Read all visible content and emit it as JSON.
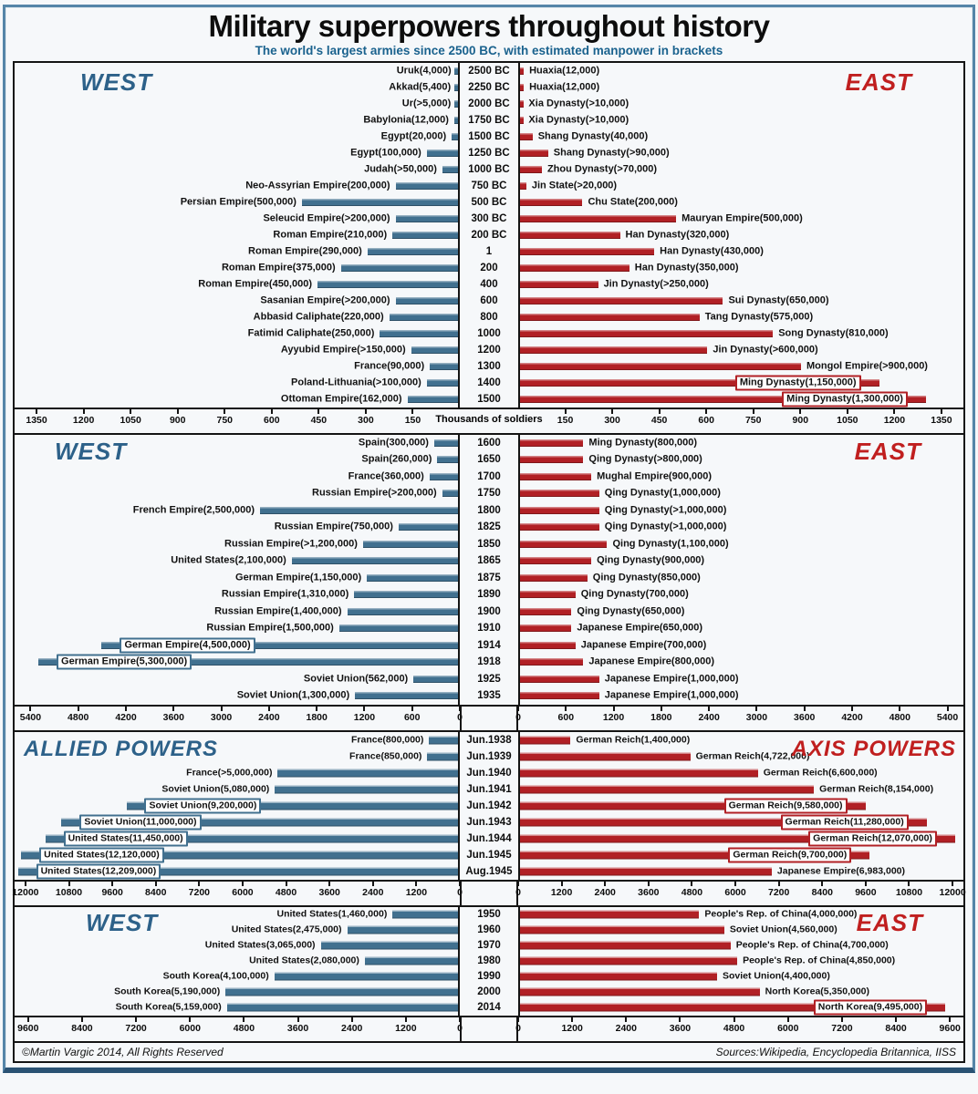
{
  "title": "Military superpowers throughout history",
  "subtitle": "The world's largest armies since 2500 BC, with estimated manpower in brackets",
  "footer": {
    "left": "©Martin Vargic 2014, All Rights Reserved",
    "right": "Sources:Wikipedia, Encyclopedia Britannica, IISS"
  },
  "colors": {
    "west_bar": "#41708f",
    "east_bar": "#b12025",
    "west_text": "#2d6189",
    "east_text": "#c01f1f",
    "subtitle": "#1a628e",
    "connector_line": "#c9c9c9"
  },
  "chart_data": [
    {
      "type": "bar",
      "orientation": "diverging-horizontal",
      "unit": "thousands of soldiers",
      "west_header": "WEST",
      "east_header": "EAST",
      "axis": {
        "ticks": [
          150,
          300,
          450,
          600,
          750,
          900,
          1050,
          1200,
          1350
        ],
        "tick_interval": 150,
        "scale_max": 1420,
        "show_zero": false,
        "center_caption": "Thousands of soldiers"
      },
      "rows": [
        {
          "period": "2500 BC",
          "west": {
            "label": "Uruk(4,000)",
            "value": 4
          },
          "east": {
            "label": "Huaxia(12,000)",
            "value": 12
          }
        },
        {
          "period": "2250 BC",
          "west": {
            "label": "Akkad(5,400)",
            "value": 5.4
          },
          "east": {
            "label": "Huaxia(12,000)",
            "value": 12
          }
        },
        {
          "period": "2000 BC",
          "west": {
            "label": "Ur(>5,000)",
            "value": 5
          },
          "east": {
            "label": "Xia Dynasty(>10,000)",
            "value": 10
          }
        },
        {
          "period": "1750 BC",
          "west": {
            "label": "Babylonia(12,000)",
            "value": 12
          },
          "east": {
            "label": "Xia Dynasty(>10,000)",
            "value": 10
          }
        },
        {
          "period": "1500 BC",
          "west": {
            "label": "Egypt(20,000)",
            "value": 20
          },
          "east": {
            "label": "Shang Dynasty(40,000)",
            "value": 40
          }
        },
        {
          "period": "1250 BC",
          "west": {
            "label": "Egypt(100,000)",
            "value": 100
          },
          "east": {
            "label": "Shang Dynasty(>90,000)",
            "value": 90
          }
        },
        {
          "period": "1000 BC",
          "west": {
            "label": "Judah(>50,000)",
            "value": 50
          },
          "east": {
            "label": "Zhou Dynasty(>70,000)",
            "value": 70
          }
        },
        {
          "period": "750 BC",
          "west": {
            "label": "Neo-Assyrian Empire(200,000)",
            "value": 200
          },
          "east": {
            "label": "Jin State(>20,000)",
            "value": 20
          }
        },
        {
          "period": "500 BC",
          "west": {
            "label": "Persian Empire(500,000)",
            "value": 500
          },
          "east": {
            "label": "Chu State(200,000)",
            "value": 200
          }
        },
        {
          "period": "300 BC",
          "west": {
            "label": "Seleucid Empire(>200,000)",
            "value": 200
          },
          "east": {
            "label": "Mauryan Empire(500,000)",
            "value": 500
          }
        },
        {
          "period": "200 BC",
          "west": {
            "label": "Roman Empire(210,000)",
            "value": 210
          },
          "east": {
            "label": "Han Dynasty(320,000)",
            "value": 320
          }
        },
        {
          "period": "1",
          "west": {
            "label": "Roman Empire(290,000)",
            "value": 290
          },
          "east": {
            "label": "Han Dynasty(430,000)",
            "value": 430
          }
        },
        {
          "period": "200",
          "west": {
            "label": "Roman Empire(375,000)",
            "value": 375
          },
          "east": {
            "label": "Han Dynasty(350,000)",
            "value": 350
          }
        },
        {
          "period": "400",
          "west": {
            "label": "Roman Empire(450,000)",
            "value": 450
          },
          "east": {
            "label": "Jin Dynasty(>250,000)",
            "value": 250
          }
        },
        {
          "period": "600",
          "west": {
            "label": "Sasanian Empire(>200,000)",
            "value": 200
          },
          "east": {
            "label": "Sui Dynasty(650,000)",
            "value": 650
          }
        },
        {
          "period": "800",
          "west": {
            "label": "Abbasid Caliphate(220,000)",
            "value": 220
          },
          "east": {
            "label": "Tang Dynasty(575,000)",
            "value": 575
          }
        },
        {
          "period": "1000",
          "west": {
            "label": "Fatimid Caliphate(250,000)",
            "value": 250
          },
          "east": {
            "label": "Song Dynasty(810,000)",
            "value": 810
          }
        },
        {
          "period": "1200",
          "west": {
            "label": "Ayyubid Empire(>150,000)",
            "value": 150
          },
          "east": {
            "label": "Jin Dynasty(>600,000)",
            "value": 600
          }
        },
        {
          "period": "1300",
          "west": {
            "label": "France(90,000)",
            "value": 90
          },
          "east": {
            "label": "Mongol Empire(>900,000)",
            "value": 900
          }
        },
        {
          "period": "1400",
          "west": {
            "label": "Poland-Lithuania(>100,000)",
            "value": 100
          },
          "east": {
            "label": "Ming Dynasty(1,150,000)",
            "value": 1150,
            "boxed": true
          }
        },
        {
          "period": "1500",
          "west": {
            "label": "Ottoman Empire(162,000)",
            "value": 162
          },
          "east": {
            "label": "Ming Dynasty(1,300,000)",
            "value": 1300,
            "boxed": true
          }
        }
      ]
    },
    {
      "type": "bar",
      "orientation": "diverging-horizontal",
      "unit": "thousands of soldiers",
      "west_header": "WEST",
      "east_header": "EAST",
      "axis": {
        "ticks": [
          600,
          1200,
          1800,
          2400,
          3000,
          3600,
          4200,
          4800,
          5400
        ],
        "tick_interval": 600,
        "scale_max": 5600,
        "show_zero": true,
        "center_caption": ""
      },
      "rows": [
        {
          "period": "1600",
          "west": {
            "label": "Spain(300,000)",
            "value": 300
          },
          "east": {
            "label": "Ming Dynasty(800,000)",
            "value": 800
          }
        },
        {
          "period": "1650",
          "west": {
            "label": "Spain(260,000)",
            "value": 260
          },
          "east": {
            "label": "Qing Dynasty(>800,000)",
            "value": 800
          }
        },
        {
          "period": "1700",
          "west": {
            "label": "France(360,000)",
            "value": 360
          },
          "east": {
            "label": "Mughal Empire(900,000)",
            "value": 900
          }
        },
        {
          "period": "1750",
          "west": {
            "label": "Russian Empire(>200,000)",
            "value": 200
          },
          "east": {
            "label": "Qing Dynasty(1,000,000)",
            "value": 1000
          }
        },
        {
          "period": "1800",
          "west": {
            "label": "French Empire(2,500,000)",
            "value": 2500
          },
          "east": {
            "label": "Qing Dynasty(>1,000,000)",
            "value": 1000
          }
        },
        {
          "period": "1825",
          "west": {
            "label": "Russian Empire(750,000)",
            "value": 750
          },
          "east": {
            "label": "Qing Dynasty(>1,000,000)",
            "value": 1000
          }
        },
        {
          "period": "1850",
          "west": {
            "label": "Russian Empire(>1,200,000)",
            "value": 1200
          },
          "east": {
            "label": "Qing Dynasty(1,100,000)",
            "value": 1100
          }
        },
        {
          "period": "1865",
          "west": {
            "label": "United States(2,100,000)",
            "value": 2100
          },
          "east": {
            "label": "Qing Dynasty(900,000)",
            "value": 900
          }
        },
        {
          "period": "1875",
          "west": {
            "label": "German Empire(1,150,000)",
            "value": 1150
          },
          "east": {
            "label": "Qing Dynasty(850,000)",
            "value": 850
          }
        },
        {
          "period": "1890",
          "west": {
            "label": "Russian Empire(1,310,000)",
            "value": 1310
          },
          "east": {
            "label": "Qing Dynasty(700,000)",
            "value": 700
          }
        },
        {
          "period": "1900",
          "west": {
            "label": "Russian Empire(1,400,000)",
            "value": 1400
          },
          "east": {
            "label": "Qing Dynasty(650,000)",
            "value": 650
          }
        },
        {
          "period": "1910",
          "west": {
            "label": "Russian Empire(1,500,000)",
            "value": 1500
          },
          "east": {
            "label": "Japanese Empire(650,000)",
            "value": 650
          }
        },
        {
          "period": "1914",
          "west": {
            "label": "German Empire(4,500,000)",
            "value": 4500,
            "boxed": true
          },
          "east": {
            "label": "Japanese Empire(700,000)",
            "value": 700
          }
        },
        {
          "period": "1918",
          "west": {
            "label": "German Empire(5,300,000)",
            "value": 5300,
            "boxed": true
          },
          "east": {
            "label": "Japanese Empire(800,000)",
            "value": 800
          }
        },
        {
          "period": "1925",
          "west": {
            "label": "Soviet Union(562,000)",
            "value": 562
          },
          "east": {
            "label": "Japanese Empire(1,000,000)",
            "value": 1000
          }
        },
        {
          "period": "1935",
          "west": {
            "label": "Soviet Union(1,300,000)",
            "value": 1300
          },
          "east": {
            "label": "Japanese Empire(1,000,000)",
            "value": 1000
          }
        }
      ]
    },
    {
      "type": "bar",
      "orientation": "diverging-horizontal",
      "unit": "thousands of soldiers",
      "west_header": "ALLIED POWERS",
      "east_header": "AXIS POWERS",
      "axis": {
        "ticks": [
          1200,
          2400,
          3600,
          4800,
          6000,
          7200,
          8400,
          9600,
          10800,
          12000
        ],
        "tick_interval": 1200,
        "scale_max": 12300,
        "show_zero": true,
        "center_caption": ""
      },
      "rows": [
        {
          "period": "Jun.1938",
          "west": {
            "label": "France(800,000)",
            "value": 800
          },
          "east": {
            "label": "German Reich(1,400,000)",
            "value": 1400
          }
        },
        {
          "period": "Jun.1939",
          "west": {
            "label": "France(850,000)",
            "value": 850
          },
          "east": {
            "label": "German Reich(4,722,000)",
            "value": 4722
          }
        },
        {
          "period": "Jun.1940",
          "west": {
            "label": "France(>5,000,000)",
            "value": 5000
          },
          "east": {
            "label": "German Reich(6,600,000)",
            "value": 6600
          }
        },
        {
          "period": "Jun.1941",
          "west": {
            "label": "Soviet Union(5,080,000)",
            "value": 5080
          },
          "east": {
            "label": "German Reich(8,154,000)",
            "value": 8154
          }
        },
        {
          "period": "Jun.1942",
          "west": {
            "label": "Soviet Union(9,200,000)",
            "value": 9200,
            "boxed": true
          },
          "east": {
            "label": "German Reich(9,580,000)",
            "value": 9580,
            "boxed": true
          }
        },
        {
          "period": "Jun.1943",
          "west": {
            "label": "Soviet Union(11,000,000)",
            "value": 11000,
            "boxed": true
          },
          "east": {
            "label": "German Reich(11,280,000)",
            "value": 11280,
            "boxed": true
          }
        },
        {
          "period": "Jun.1944",
          "west": {
            "label": "United States(11,450,000)",
            "value": 11450,
            "boxed": true
          },
          "east": {
            "label": "German Reich(12,070,000)",
            "value": 12070,
            "boxed": true
          }
        },
        {
          "period": "Jun.1945",
          "west": {
            "label": "United States(12,120,000)",
            "value": 12120,
            "boxed": true
          },
          "east": {
            "label": "German Reich(9,700,000)",
            "value": 9700,
            "boxed": true
          }
        },
        {
          "period": "Aug.1945",
          "west": {
            "label": "United States(12,209,000)",
            "value": 12209,
            "boxed": true
          },
          "east": {
            "label": "Japanese Empire(6,983,000)",
            "value": 6983
          }
        }
      ]
    },
    {
      "type": "bar",
      "orientation": "diverging-horizontal",
      "unit": "thousands of soldiers",
      "west_header": "WEST",
      "east_header": "EAST",
      "axis": {
        "ticks": [
          1200,
          2400,
          3600,
          4800,
          6000,
          7200,
          8400,
          9600
        ],
        "tick_interval": 1200,
        "scale_max": 9900,
        "show_zero": true,
        "center_caption": ""
      },
      "rows": [
        {
          "period": "1950",
          "west": {
            "label": "United States(1,460,000)",
            "value": 1460
          },
          "east": {
            "label": "People's Rep. of China(4,000,000)",
            "value": 4000
          }
        },
        {
          "period": "1960",
          "west": {
            "label": "United States(2,475,000)",
            "value": 2475
          },
          "east": {
            "label": "Soviet Union(4,560,000)",
            "value": 4560
          }
        },
        {
          "period": "1970",
          "west": {
            "label": "United States(3,065,000)",
            "value": 3065
          },
          "east": {
            "label": "People's Rep. of China(4,700,000)",
            "value": 4700
          }
        },
        {
          "period": "1980",
          "west": {
            "label": "United States(2,080,000)",
            "value": 2080
          },
          "east": {
            "label": "People's Rep. of China(4,850,000)",
            "value": 4850
          }
        },
        {
          "period": "1990",
          "west": {
            "label": "South Korea(4,100,000)",
            "value": 4100
          },
          "east": {
            "label": "Soviet Union(4,400,000)",
            "value": 4400
          }
        },
        {
          "period": "2000",
          "west": {
            "label": "South Korea(5,190,000)",
            "value": 5190
          },
          "east": {
            "label": "North Korea(5,350,000)",
            "value": 5350
          }
        },
        {
          "period": "2014",
          "west": {
            "label": "South Korea(5,159,000)",
            "value": 5159
          },
          "east": {
            "label": "North Korea(9,495,000)",
            "value": 9495,
            "boxed": true
          }
        }
      ]
    }
  ]
}
